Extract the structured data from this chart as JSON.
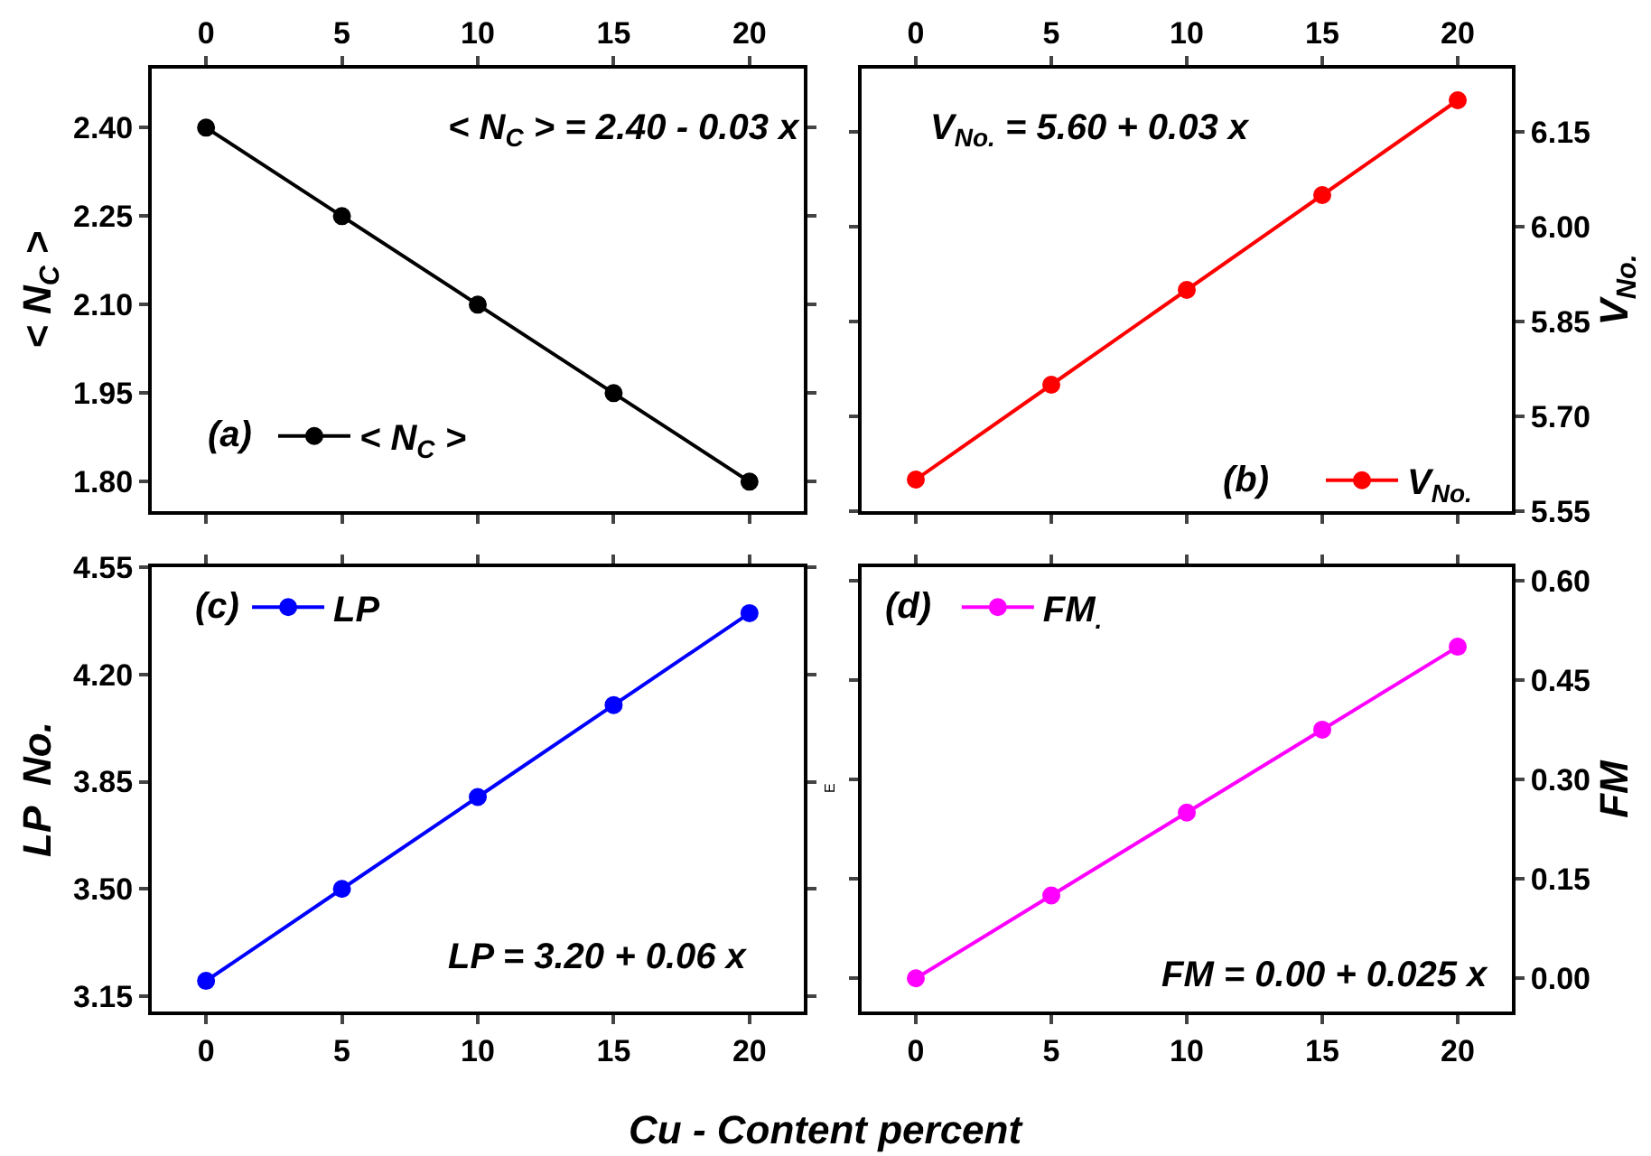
{
  "chart_data": [
    {
      "type": "line",
      "ylabel": "< N$_{C}$ >",
      "x": [
        0,
        5,
        10,
        15,
        20
      ],
      "xlim": [
        -2,
        22
      ],
      "xticks": [
        0,
        5,
        10,
        15,
        20
      ],
      "ylim": [
        1.75,
        2.5
      ],
      "yticks": [
        {
          "value": 1.8,
          "label": "1.80"
        },
        1.95,
        {
          "value": 2.1,
          "label": "2.10"
        },
        2.25,
        {
          "value": 2.4,
          "label": "2.40"
        }
      ],
      "series": [
        {
          "name": "< N$_{C}$ >",
          "color": "#000000",
          "values": [
            2.4,
            2.25,
            2.1,
            1.95,
            1.8
          ]
        }
      ],
      "annotations": [
        "(a)",
        "< N$_{C}$ > = 2.40 - 0.03 x"
      ],
      "legend": "bottom left",
      "marker": "circle",
      "line_style": "solid"
    },
    {
      "type": "line",
      "ylabel": "V$_{No.}$",
      "x": [
        0,
        5,
        10,
        15,
        20
      ],
      "xlim": [
        -2,
        22
      ],
      "xticks": [
        0,
        5,
        10,
        15,
        20
      ],
      "ylim": [
        5.55,
        6.25
      ],
      "yticks": [
        5.55,
        {
          "value": 5.7,
          "label": "5.70"
        },
        5.85,
        {
          "value": 6.0,
          "label": "6.00"
        },
        6.15
      ],
      "series": [
        {
          "name": "V$_{No.}$",
          "color": "#ff0000",
          "values": [
            5.6,
            5.75,
            5.9,
            6.05,
            6.2
          ]
        }
      ],
      "annotations": [
        "(b)",
        "V$_{No.}$ = 5.60 + 0.03 x"
      ],
      "legend": "bottom right",
      "marker": "circle",
      "line_style": "solid"
    },
    {
      "type": "line",
      "ylabel": "LP  No.",
      "xlabel": "Cu - Content percent",
      "x": [
        0,
        5,
        10,
        15,
        20
      ],
      "xlim": [
        -2,
        22
      ],
      "xticks": [
        0,
        5,
        10,
        15,
        20
      ],
      "ylim": [
        3.1,
        4.55
      ],
      "yticks": [
        3.15,
        {
          "value": 3.5,
          "label": "3.50"
        },
        3.85,
        {
          "value": 4.2,
          "label": "4.20"
        },
        4.55
      ],
      "series": [
        {
          "name": "LP",
          "color": "#0000ff",
          "values": [
            3.2,
            3.5,
            3.8,
            4.1,
            4.4
          ]
        }
      ],
      "annotations": [
        "(c)",
        "LP = 3.20 + 0.06 x"
      ],
      "legend": "top left",
      "marker": "circle",
      "line_style": "solid"
    },
    {
      "type": "line",
      "ylabel": "FM",
      "x": [
        0,
        5,
        10,
        15,
        20
      ],
      "xlim": [
        -2,
        22
      ],
      "xticks": [
        0,
        5,
        10,
        15,
        20
      ],
      "ylim": [
        -0.05,
        0.62
      ],
      "yticks": [
        {
          "value": 0,
          "label": "0.00"
        },
        0.15,
        {
          "value": 0.3,
          "label": "0.30"
        },
        0.45,
        {
          "value": 0.6,
          "label": "0.60"
        }
      ],
      "series": [
        {
          "name": "FM$_{.}$",
          "color": "#ff00ff",
          "values": [
            0.0,
            0.125,
            0.25,
            0.375,
            0.5
          ]
        }
      ],
      "annotations": [
        "(d)",
        "FM = 0.00 + 0.025 x",
        "E"
      ],
      "legend": "top left",
      "marker": "circle",
      "line_style": "solid"
    }
  ]
}
